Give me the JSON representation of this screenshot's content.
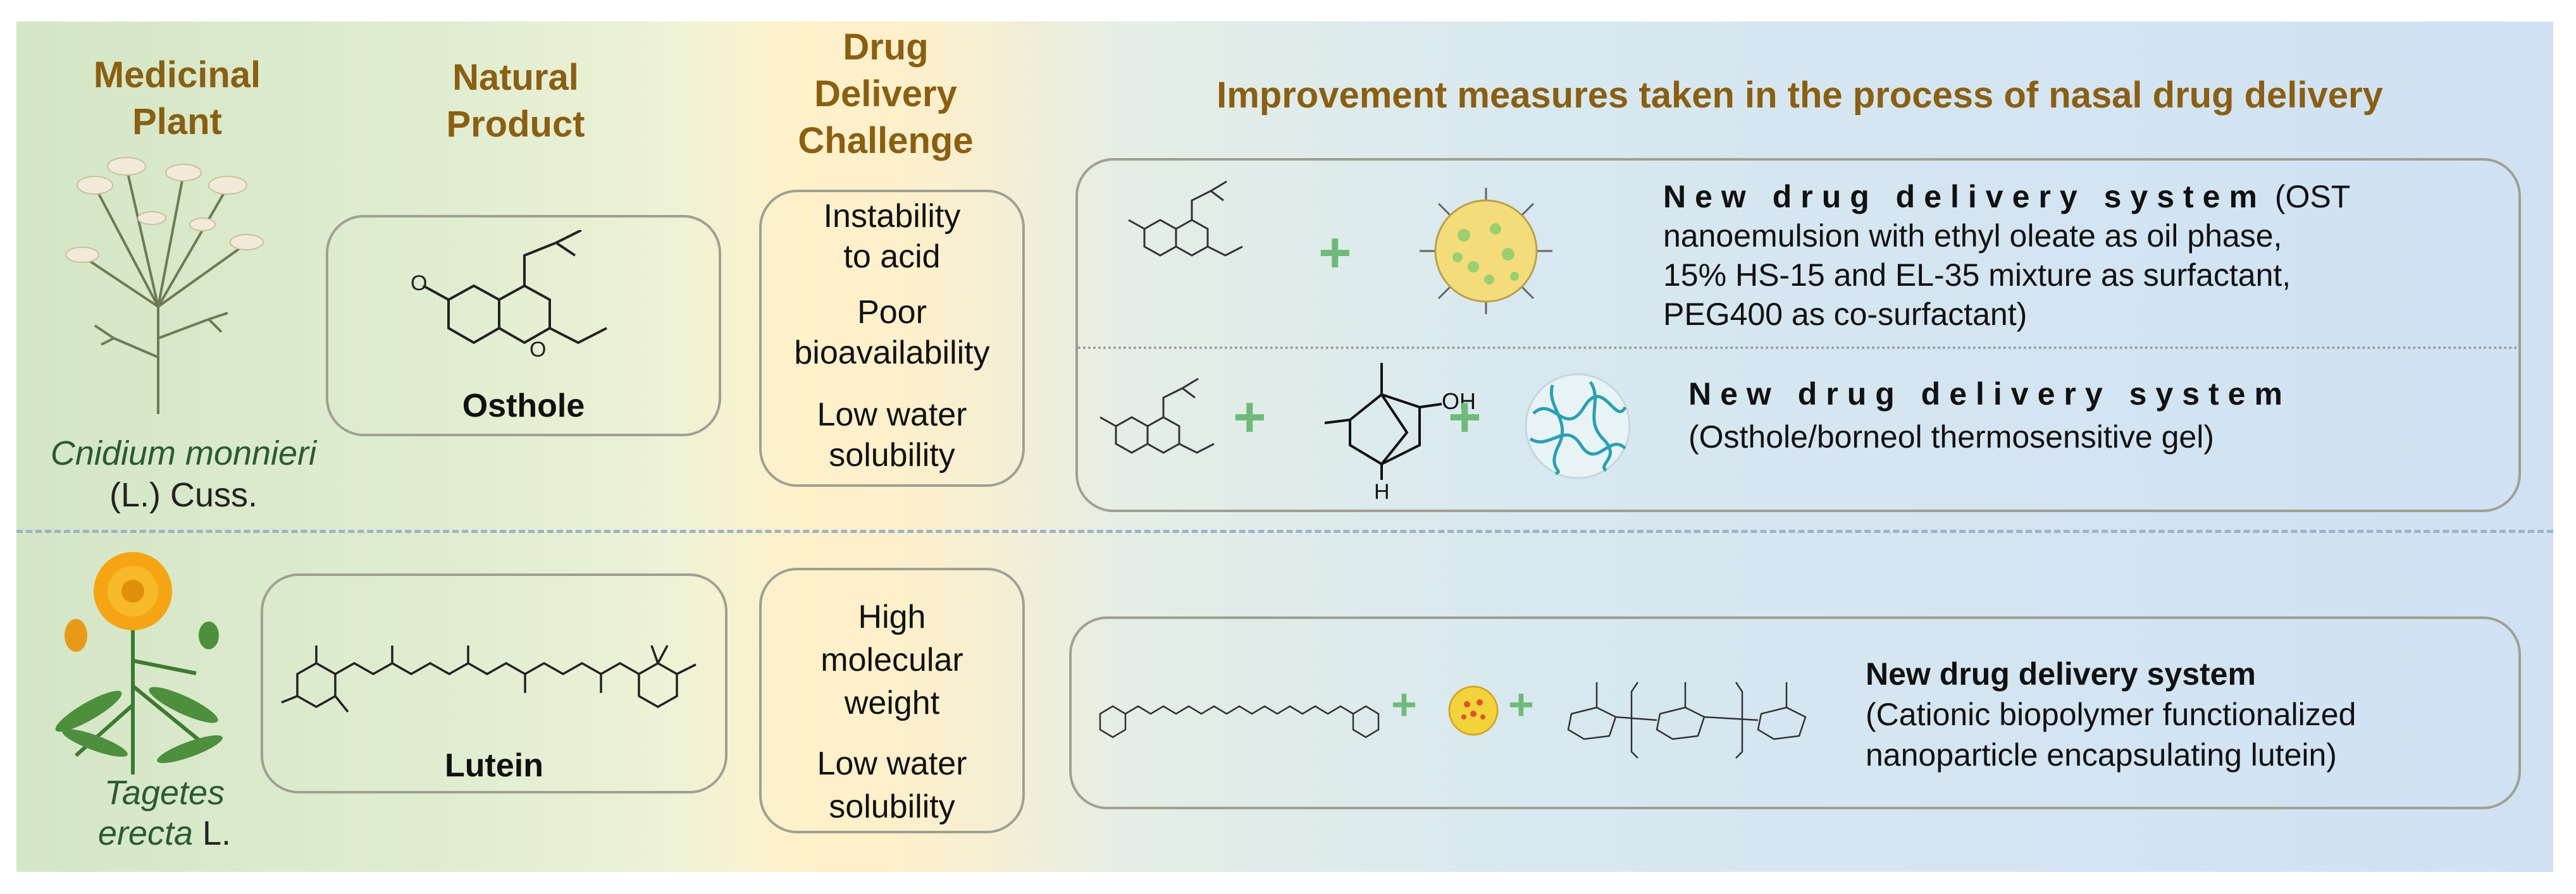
{
  "headers": {
    "plant": "Medicinal\nPlant",
    "product": "Natural\nProduct",
    "challenge": "Drug\nDelivery\nChallenge",
    "improvement": "Improvement measures taken in the process of nasal drug delivery"
  },
  "row1": {
    "plant_italic": "Cnidium monnieri",
    "plant_rest": "(L.) Cuss.",
    "product": "Osthole",
    "challenges": [
      "Instability\nto acid",
      "Poor\nbioavailability",
      "Low water\nsolubility"
    ],
    "system1_title": "New drug delivery system",
    "system1_desc_a": " (OST",
    "system1_desc_b": "nanoemulsion with ethyl oleate as oil phase,\n15% HS-15 and EL-35 mixture as surfactant,\nPEG400 as co-surfactant)",
    "system2_title": "New drug delivery system",
    "system2_desc": "(Osthole/borneol thermosensitive gel)",
    "borneol_oh": "OH",
    "borneol_h": "H"
  },
  "row2": {
    "plant_italic": "Tagetes\nerecta",
    "plant_rest": " L.",
    "product": "Lutein",
    "challenges": [
      "High\nmolecular\nweight",
      "Low water\nsolubility"
    ],
    "system_title": "New drug delivery system",
    "system_desc": "(Cationic biopolymer functionalized\nnanoparticle encapsulating lutein)"
  },
  "colors": {
    "header": "#8a5f12",
    "plus": "#6fba7a",
    "divider": "#9fb3c6",
    "box_border": "#9f9f92"
  },
  "icons": [
    "cnidium-flower-icon",
    "marigold-flower-icon",
    "nanoemulsion-droplet-icon",
    "thermosensitive-gel-icon",
    "lutein-nanoparticle-icon"
  ]
}
